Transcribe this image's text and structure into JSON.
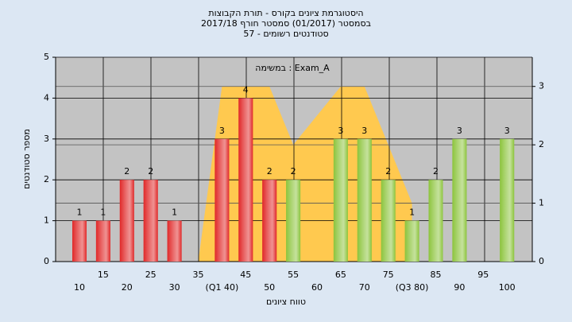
{
  "chart_data": {
    "type": "bar",
    "titles": [
      "היסטוגרמת ציונים בקורס - תורת הקבוצות",
      "בסמסטר  (01/2017)  סמסטר חורף 2017/18",
      "57 - סטודנטים רשומים"
    ],
    "annotation": "במשימה : Exam_A",
    "x_label": "טווח ציונים",
    "y_label": "מספר סטודנטים",
    "categories": [
      "10",
      "15",
      "20",
      "25",
      "30",
      "35",
      "(Q1 40)",
      "45",
      "50",
      "55",
      "60",
      "65",
      "70",
      "75",
      "(Q3 80)",
      "85",
      "90",
      "95",
      "100"
    ],
    "series": [
      {
        "values": [
          1,
          1,
          2,
          2,
          1,
          0,
          3,
          4,
          2,
          2,
          0,
          3,
          3,
          2,
          1,
          2,
          3,
          0,
          3
        ],
        "value_labels": [
          "1",
          "1",
          "2",
          "2",
          "1",
          null,
          "3",
          "4",
          "2",
          "2",
          null,
          "3",
          "3",
          "2",
          "1",
          "2",
          "3",
          null,
          "3"
        ],
        "colors": [
          "#e02828",
          "#e02828",
          "#e02828",
          "#e02828",
          "#e02828",
          "#e02828",
          "#e02828",
          "#e02828",
          "#e02828",
          "#8cc43c",
          "#8cc43c",
          "#8cc43c",
          "#8cc43c",
          "#8cc43c",
          "#8cc43c",
          "#8cc43c",
          "#8cc43c",
          "#8cc43c",
          "#8cc43c"
        ]
      }
    ],
    "area": {
      "axis": "y2",
      "color": "#ffc94f",
      "values": [
        null,
        null,
        null,
        null,
        null,
        0,
        3,
        3,
        3,
        2,
        2.5,
        3,
        3,
        2,
        1,
        null,
        null,
        null,
        null
      ]
    },
    "ylim": [
      0,
      5
    ],
    "yticks": [
      0,
      1,
      2,
      3,
      4,
      5
    ],
    "y2lim": [
      0,
      3.5
    ],
    "y2ticks": [
      0,
      1,
      2,
      3
    ],
    "grid": true
  }
}
